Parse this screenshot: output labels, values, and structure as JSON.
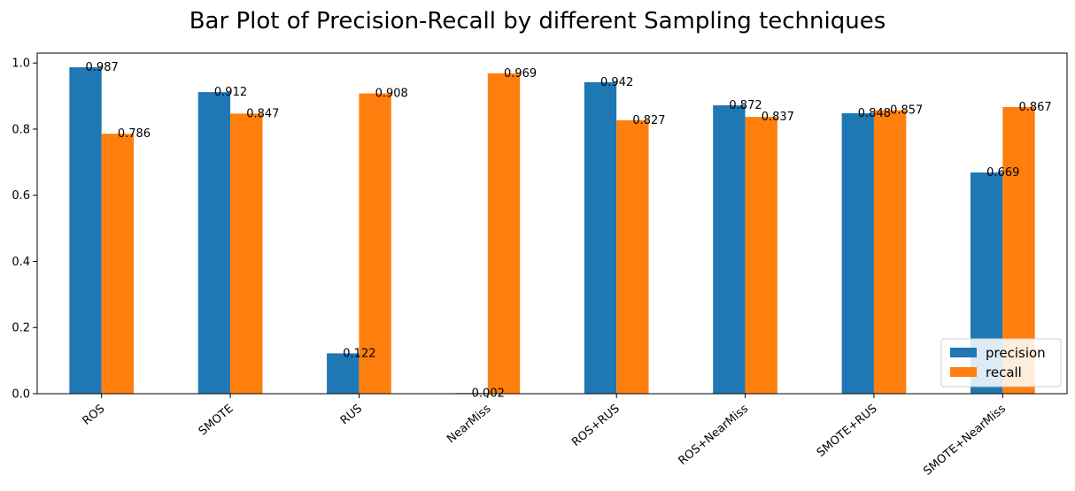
{
  "chart_data": {
    "type": "bar",
    "title": "Bar Plot of Precision-Recall by different Sampling techniques",
    "xlabel": "",
    "ylabel": "",
    "categories": [
      "ROS",
      "SMOTE",
      "RUS",
      "NearMiss",
      "ROS+RUS",
      "ROS+NearMiss",
      "SMOTE+RUS",
      "SMOTE+NearMiss"
    ],
    "series": [
      {
        "name": "precision",
        "color": "#1f77b4",
        "values": [
          0.987,
          0.912,
          0.122,
          0.002,
          0.942,
          0.872,
          0.848,
          0.669
        ],
        "labels": [
          "0.987",
          "0.912",
          "0.122",
          "0.002",
          "0.942",
          "0.872",
          "0.848",
          "0.669"
        ]
      },
      {
        "name": "recall",
        "color": "#ff7f0e",
        "values": [
          0.786,
          0.847,
          0.908,
          0.969,
          0.827,
          0.837,
          0.857,
          0.867
        ],
        "labels": [
          "0.786",
          "0.847",
          "0.908",
          "0.969",
          "0.827",
          "0.837",
          "0.857",
          "0.867"
        ]
      }
    ],
    "ylim": [
      0,
      1.03
    ],
    "yticks": [
      "0.0",
      "0.2",
      "0.4",
      "0.6",
      "0.8",
      "1.0"
    ],
    "ytick_values": [
      0,
      0.2,
      0.4,
      0.6,
      0.8,
      1.0
    ],
    "grid": false,
    "legend_position": "bottom-right",
    "xtick_rotation": 40
  }
}
